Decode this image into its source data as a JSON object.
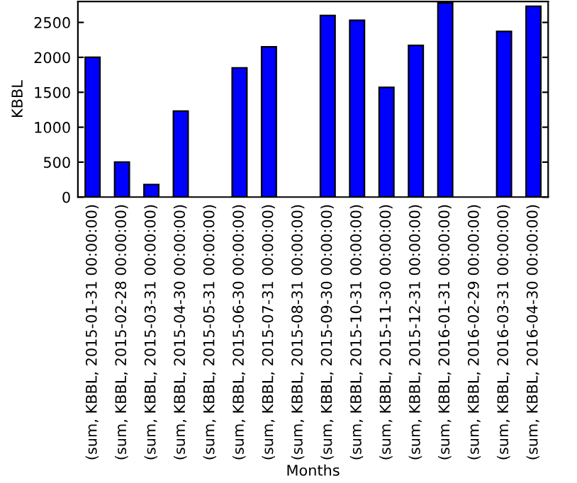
{
  "chart_data": {
    "type": "bar",
    "xlabel": "Months",
    "ylabel": "KBBL",
    "categories": [
      "(sum, KBBL, 2015-01-31 00:00:00)",
      "(sum, KBBL, 2015-02-28 00:00:00)",
      "(sum, KBBL, 2015-03-31 00:00:00)",
      "(sum, KBBL, 2015-04-30 00:00:00)",
      "(sum, KBBL, 2015-05-31 00:00:00)",
      "(sum, KBBL, 2015-06-30 00:00:00)",
      "(sum, KBBL, 2015-07-31 00:00:00)",
      "(sum, KBBL, 2015-08-31 00:00:00)",
      "(sum, KBBL, 2015-09-30 00:00:00)",
      "(sum, KBBL, 2015-10-31 00:00:00)",
      "(sum, KBBL, 2015-11-30 00:00:00)",
      "(sum, KBBL, 2015-12-31 00:00:00)",
      "(sum, KBBL, 2016-01-31 00:00:00)",
      "(sum, KBBL, 2016-02-29 00:00:00)",
      "(sum, KBBL, 2016-03-31 00:00:00)",
      "(sum, KBBL, 2016-04-30 00:00:00)"
    ],
    "values": [
      2000,
      500,
      180,
      1230,
      null,
      1850,
      2150,
      null,
      2600,
      2530,
      1570,
      2170,
      2780,
      null,
      2370,
      2730
    ],
    "color": "#0000ff",
    "ylim": [
      0,
      2800
    ],
    "yticks": [
      0,
      500,
      1000,
      1500,
      2000,
      2500
    ],
    "grid": false
  }
}
